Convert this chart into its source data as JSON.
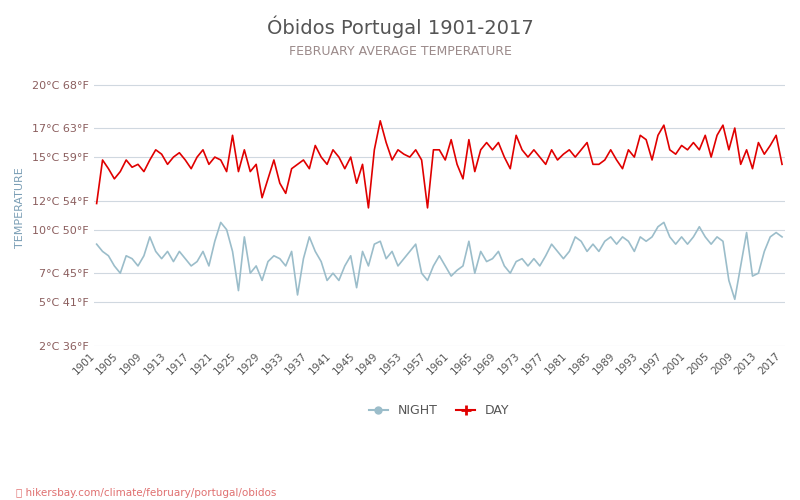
{
  "title": "Óbidos Portugal 1901-2017",
  "subtitle": "FEBRUARY AVERAGE TEMPERATURE",
  "ylabel": "TEMPERATURE",
  "watermark": "hikersbay.com/climate/february/portugal/obidos",
  "years": [
    1901,
    1902,
    1903,
    1904,
    1905,
    1906,
    1907,
    1908,
    1909,
    1910,
    1911,
    1912,
    1913,
    1914,
    1915,
    1916,
    1917,
    1918,
    1919,
    1920,
    1921,
    1922,
    1923,
    1924,
    1925,
    1926,
    1927,
    1928,
    1929,
    1930,
    1931,
    1932,
    1933,
    1934,
    1935,
    1936,
    1937,
    1938,
    1939,
    1940,
    1941,
    1942,
    1943,
    1944,
    1945,
    1946,
    1947,
    1948,
    1949,
    1950,
    1951,
    1952,
    1953,
    1954,
    1955,
    1956,
    1957,
    1958,
    1959,
    1960,
    1961,
    1962,
    1963,
    1964,
    1965,
    1966,
    1967,
    1968,
    1969,
    1970,
    1971,
    1972,
    1973,
    1974,
    1975,
    1976,
    1977,
    1978,
    1979,
    1980,
    1981,
    1982,
    1983,
    1984,
    1985,
    1986,
    1987,
    1988,
    1989,
    1990,
    1991,
    1992,
    1993,
    1994,
    1995,
    1996,
    1997,
    1998,
    1999,
    2000,
    2001,
    2002,
    2003,
    2004,
    2005,
    2006,
    2007,
    2008,
    2009,
    2010,
    2011,
    2012,
    2013,
    2014,
    2015,
    2016,
    2017
  ],
  "day_temps": [
    11.8,
    14.8,
    14.2,
    13.5,
    14.0,
    14.8,
    14.3,
    14.5,
    14.0,
    14.8,
    15.5,
    15.2,
    14.5,
    15.0,
    15.3,
    14.8,
    14.2,
    15.0,
    15.5,
    14.5,
    15.0,
    14.8,
    14.0,
    16.5,
    14.0,
    15.5,
    14.0,
    14.5,
    12.2,
    13.5,
    14.8,
    13.2,
    12.5,
    14.2,
    14.5,
    14.8,
    14.2,
    15.8,
    15.0,
    14.5,
    15.5,
    15.0,
    14.2,
    15.0,
    13.2,
    14.5,
    11.5,
    15.5,
    17.5,
    16.0,
    14.8,
    15.5,
    15.2,
    15.0,
    15.5,
    14.8,
    11.5,
    15.5,
    15.5,
    14.8,
    16.2,
    14.5,
    13.5,
    16.2,
    14.0,
    15.5,
    16.0,
    15.5,
    16.0,
    15.0,
    14.2,
    16.5,
    15.5,
    15.0,
    15.5,
    15.0,
    14.5,
    15.5,
    14.8,
    15.2,
    15.5,
    15.0,
    15.5,
    16.0,
    14.5,
    14.5,
    14.8,
    15.5,
    14.8,
    14.2,
    15.5,
    15.0,
    16.5,
    16.2,
    14.8,
    16.5,
    17.2,
    15.5,
    15.2,
    15.8,
    15.5,
    16.0,
    15.5,
    16.5,
    15.0,
    16.5,
    17.2,
    15.5,
    17.0,
    14.5,
    15.5,
    14.2,
    16.0,
    15.2,
    15.8,
    16.5,
    14.5
  ],
  "night_temps": [
    9.0,
    8.5,
    8.2,
    7.5,
    7.0,
    8.2,
    8.0,
    7.5,
    8.2,
    9.5,
    8.5,
    8.0,
    8.5,
    7.8,
    8.5,
    8.0,
    7.5,
    7.8,
    8.5,
    7.5,
    9.2,
    10.5,
    10.0,
    8.5,
    5.8,
    9.5,
    7.0,
    7.5,
    6.5,
    7.8,
    8.2,
    8.0,
    7.5,
    8.5,
    5.5,
    8.0,
    9.5,
    8.5,
    7.8,
    6.5,
    7.0,
    6.5,
    7.5,
    8.2,
    6.0,
    8.5,
    7.5,
    9.0,
    9.2,
    8.0,
    8.5,
    7.5,
    8.0,
    8.5,
    9.0,
    7.0,
    6.5,
    7.5,
    8.2,
    7.5,
    6.8,
    7.2,
    7.5,
    9.2,
    7.0,
    8.5,
    7.8,
    8.0,
    8.5,
    7.5,
    7.0,
    7.8,
    8.0,
    7.5,
    8.0,
    7.5,
    8.2,
    9.0,
    8.5,
    8.0,
    8.5,
    9.5,
    9.2,
    8.5,
    9.0,
    8.5,
    9.2,
    9.5,
    9.0,
    9.5,
    9.2,
    8.5,
    9.5,
    9.2,
    9.5,
    10.2,
    10.5,
    9.5,
    9.0,
    9.5,
    9.0,
    9.5,
    10.2,
    9.5,
    9.0,
    9.5,
    9.2,
    6.5,
    5.2,
    7.5,
    9.8,
    6.8,
    7.0,
    8.5,
    9.5,
    9.8,
    9.5
  ],
  "yticks_c": [
    2,
    5,
    7,
    10,
    12,
    15,
    17,
    20
  ],
  "yticks_f": [
    36,
    41,
    45,
    50,
    54,
    59,
    63,
    68
  ],
  "ymin": 2,
  "ymax": 21,
  "xmin": 1901,
  "xmax": 2017,
  "day_color": "#e00000",
  "night_color": "#9bbdca",
  "title_color": "#555555",
  "subtitle_color": "#9b8a8a",
  "label_color": "#8b5e5e",
  "axis_label_color": "#7a9eb5",
  "grid_color": "#d0d8e0",
  "bg_color": "#ffffff",
  "watermark_color": "#e07070",
  "xticks": [
    1901,
    1905,
    1909,
    1913,
    1917,
    1921,
    1925,
    1929,
    1933,
    1937,
    1941,
    1945,
    1949,
    1953,
    1957,
    1961,
    1965,
    1969,
    1973,
    1977,
    1981,
    1985,
    1989,
    1993,
    1997,
    2001,
    2005,
    2009,
    2013,
    2017
  ]
}
